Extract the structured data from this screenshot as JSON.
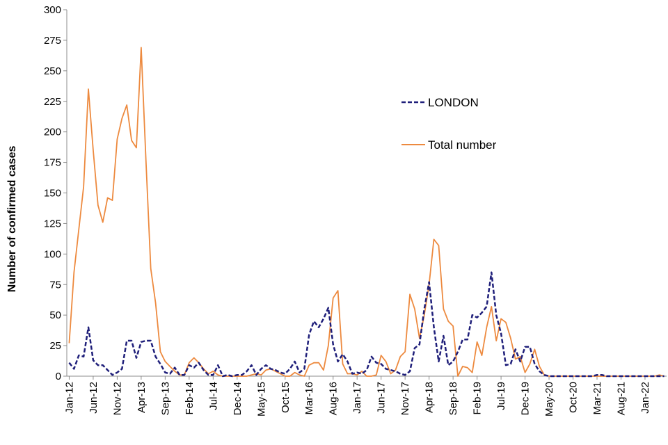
{
  "chart_data": {
    "type": "line",
    "ylabel": "Number of confirmed cases",
    "ylim": [
      0,
      300
    ],
    "yticks": [
      0,
      25,
      50,
      75,
      100,
      125,
      150,
      175,
      200,
      225,
      250,
      275,
      300
    ],
    "x_tick_labels": [
      "Jan-12",
      "Jun-12",
      "Nov-12",
      "Apr-13",
      "Sep-13",
      "Feb-14",
      "Jul-14",
      "Dec-14",
      "May-15",
      "Oct-15",
      "Mar-16",
      "Aug-16",
      "Jan-17",
      "Jun-17",
      "Nov-17",
      "Apr-18",
      "Sep-18",
      "Feb-19",
      "Jul-19",
      "Dec-19",
      "May-20",
      "Oct-20",
      "Mar-21",
      "Aug-21",
      "Jan-22"
    ],
    "x_range": [
      "Jan-12",
      "May-22"
    ],
    "grid": false,
    "legend_position": "upper-middle-right",
    "colors": {
      "london": "#1f1f7a",
      "total": "#ed8a3f"
    },
    "series": [
      {
        "name": "LONDON",
        "style": "dashed",
        "points": [
          [
            "Jan-12",
            11
          ],
          [
            "Feb-12",
            6
          ],
          [
            "Mar-12",
            17
          ],
          [
            "Apr-12",
            16
          ],
          [
            "May-12",
            40
          ],
          [
            "Jun-12",
            13
          ],
          [
            "Jul-12",
            9
          ],
          [
            "Aug-12",
            9
          ],
          [
            "Sep-12",
            5
          ],
          [
            "Oct-12",
            1
          ],
          [
            "Nov-12",
            3
          ],
          [
            "Dec-12",
            6
          ],
          [
            "Jan-13",
            29
          ],
          [
            "Feb-13",
            29
          ],
          [
            "Mar-13",
            15
          ],
          [
            "Apr-13",
            28
          ],
          [
            "May-13",
            29
          ],
          [
            "Jun-13",
            29
          ],
          [
            "Jul-13",
            16
          ],
          [
            "Aug-13",
            10
          ],
          [
            "Sep-13",
            3
          ],
          [
            "Oct-13",
            2
          ],
          [
            "Nov-13",
            7
          ],
          [
            "Dec-13",
            1
          ],
          [
            "Jan-14",
            1
          ],
          [
            "Feb-14",
            9
          ],
          [
            "Mar-14",
            7
          ],
          [
            "Apr-14",
            11
          ],
          [
            "May-14",
            5
          ],
          [
            "Jun-14",
            1
          ],
          [
            "Jul-14",
            1
          ],
          [
            "Aug-14",
            9
          ],
          [
            "Sep-14",
            0
          ],
          [
            "Oct-14",
            1
          ],
          [
            "Nov-14",
            0
          ],
          [
            "Dec-14",
            1
          ],
          [
            "Jan-15",
            1
          ],
          [
            "Feb-15",
            4
          ],
          [
            "Mar-15",
            9
          ],
          [
            "Apr-15",
            1
          ],
          [
            "May-15",
            6
          ],
          [
            "Jun-15",
            9
          ],
          [
            "Jul-15",
            6
          ],
          [
            "Aug-15",
            5
          ],
          [
            "Sep-15",
            3
          ],
          [
            "Oct-15",
            2
          ],
          [
            "Nov-15",
            6
          ],
          [
            "Dec-15",
            12
          ],
          [
            "Jan-16",
            3
          ],
          [
            "Feb-16",
            6
          ],
          [
            "Mar-16",
            34
          ],
          [
            "Apr-16",
            45
          ],
          [
            "May-16",
            40
          ],
          [
            "Jun-16",
            47
          ],
          [
            "Jul-16",
            56
          ],
          [
            "Aug-16",
            26
          ],
          [
            "Sep-16",
            12
          ],
          [
            "Oct-16",
            18
          ],
          [
            "Nov-16",
            12
          ],
          [
            "Dec-16",
            2
          ],
          [
            "Jan-17",
            3
          ],
          [
            "Feb-17",
            2
          ],
          [
            "Mar-17",
            5
          ],
          [
            "Apr-17",
            16
          ],
          [
            "May-17",
            11
          ],
          [
            "Jun-17",
            10
          ],
          [
            "Jul-17",
            6
          ],
          [
            "Aug-17",
            5
          ],
          [
            "Sep-17",
            4
          ],
          [
            "Oct-17",
            2
          ],
          [
            "Nov-17",
            1
          ],
          [
            "Dec-17",
            4
          ],
          [
            "Jan-18",
            23
          ],
          [
            "Feb-18",
            26
          ],
          [
            "Mar-18",
            55
          ],
          [
            "Apr-18",
            77
          ],
          [
            "May-18",
            40
          ],
          [
            "Jun-18",
            12
          ],
          [
            "Jul-18",
            33
          ],
          [
            "Aug-18",
            9
          ],
          [
            "Sep-18",
            12
          ],
          [
            "Oct-18",
            20
          ],
          [
            "Nov-18",
            30
          ],
          [
            "Dec-18",
            30
          ],
          [
            "Jan-19",
            50
          ],
          [
            "Feb-19",
            48
          ],
          [
            "Mar-19",
            52
          ],
          [
            "Apr-19",
            57
          ],
          [
            "May-19",
            85
          ],
          [
            "Jun-19",
            50
          ],
          [
            "Jul-19",
            35
          ],
          [
            "Aug-19",
            9
          ],
          [
            "Sep-19",
            10
          ],
          [
            "Oct-19",
            22
          ],
          [
            "Nov-19",
            12
          ],
          [
            "Dec-19",
            24
          ],
          [
            "Jan-20",
            24
          ],
          [
            "Feb-20",
            10
          ],
          [
            "Mar-20",
            4
          ],
          [
            "Apr-20",
            1
          ],
          [
            "May-20",
            0
          ],
          [
            "Jun-20",
            0
          ],
          [
            "Jul-20",
            0
          ],
          [
            "Aug-20",
            0
          ],
          [
            "Sep-20",
            0
          ],
          [
            "Oct-20",
            0
          ],
          [
            "Nov-20",
            0
          ],
          [
            "Dec-20",
            0
          ],
          [
            "Jan-21",
            0
          ],
          [
            "Feb-21",
            0
          ],
          [
            "Mar-21",
            1
          ],
          [
            "Apr-21",
            1
          ],
          [
            "May-21",
            0
          ],
          [
            "Jun-21",
            0
          ],
          [
            "Jul-21",
            0
          ],
          [
            "Aug-21",
            0
          ],
          [
            "Sep-21",
            0
          ],
          [
            "Oct-21",
            0
          ],
          [
            "Nov-21",
            0
          ],
          [
            "Dec-21",
            0
          ],
          [
            "Jan-22",
            0
          ],
          [
            "Feb-22",
            0
          ],
          [
            "Mar-22",
            0
          ],
          [
            "Apr-22",
            0
          ],
          [
            "May-22",
            0
          ]
        ]
      },
      {
        "name": "Total number",
        "style": "solid",
        "points": [
          [
            "Jan-12",
            27
          ],
          [
            "Feb-12",
            85
          ],
          [
            "Mar-12",
            120
          ],
          [
            "Apr-12",
            155
          ],
          [
            "May-12",
            235
          ],
          [
            "Jun-12",
            185
          ],
          [
            "Jul-12",
            140
          ],
          [
            "Aug-12",
            126
          ],
          [
            "Sep-12",
            146
          ],
          [
            "Oct-12",
            144
          ],
          [
            "Nov-12",
            194
          ],
          [
            "Dec-12",
            211
          ],
          [
            "Jan-13",
            222
          ],
          [
            "Feb-13",
            193
          ],
          [
            "Mar-13",
            187
          ],
          [
            "Apr-13",
            269
          ],
          [
            "May-13",
            176
          ],
          [
            "Jun-13",
            88
          ],
          [
            "Jul-13",
            60
          ],
          [
            "Aug-13",
            20
          ],
          [
            "Sep-13",
            12
          ],
          [
            "Oct-13",
            8
          ],
          [
            "Nov-13",
            4
          ],
          [
            "Dec-13",
            1
          ],
          [
            "Jan-14",
            1
          ],
          [
            "Feb-14",
            11
          ],
          [
            "Mar-14",
            15
          ],
          [
            "Apr-14",
            11
          ],
          [
            "May-14",
            6
          ],
          [
            "Jun-14",
            2
          ],
          [
            "Jul-14",
            4
          ],
          [
            "Aug-14",
            1
          ],
          [
            "Sep-14",
            0
          ],
          [
            "Oct-14",
            0
          ],
          [
            "Nov-14",
            0
          ],
          [
            "Dec-14",
            0
          ],
          [
            "Jan-15",
            0
          ],
          [
            "Feb-15",
            0
          ],
          [
            "Mar-15",
            1
          ],
          [
            "Apr-15",
            2
          ],
          [
            "May-15",
            1
          ],
          [
            "Jun-15",
            5
          ],
          [
            "Jul-15",
            6
          ],
          [
            "Aug-15",
            4
          ],
          [
            "Sep-15",
            2
          ],
          [
            "Oct-15",
            0
          ],
          [
            "Nov-15",
            0
          ],
          [
            "Dec-15",
            3
          ],
          [
            "Jan-16",
            1
          ],
          [
            "Feb-16",
            0
          ],
          [
            "Mar-16",
            9
          ],
          [
            "Apr-16",
            11
          ],
          [
            "May-16",
            11
          ],
          [
            "Jun-16",
            5
          ],
          [
            "Jul-16",
            25
          ],
          [
            "Aug-16",
            64
          ],
          [
            "Sep-16",
            70
          ],
          [
            "Oct-16",
            10
          ],
          [
            "Nov-16",
            2
          ],
          [
            "Dec-16",
            2
          ],
          [
            "Jan-17",
            1
          ],
          [
            "Feb-17",
            4
          ],
          [
            "Mar-17",
            0
          ],
          [
            "Apr-17",
            0
          ],
          [
            "May-17",
            1
          ],
          [
            "Jun-17",
            17
          ],
          [
            "Jul-17",
            12
          ],
          [
            "Aug-17",
            2
          ],
          [
            "Sep-17",
            5
          ],
          [
            "Oct-17",
            16
          ],
          [
            "Nov-17",
            20
          ],
          [
            "Dec-17",
            67
          ],
          [
            "Jan-18",
            55
          ],
          [
            "Feb-18",
            31
          ],
          [
            "Mar-18",
            50
          ],
          [
            "Apr-18",
            75
          ],
          [
            "May-18",
            112
          ],
          [
            "Jun-18",
            107
          ],
          [
            "Jul-18",
            55
          ],
          [
            "Aug-18",
            45
          ],
          [
            "Sep-18",
            41
          ],
          [
            "Oct-18",
            0
          ],
          [
            "Nov-18",
            8
          ],
          [
            "Dec-18",
            7
          ],
          [
            "Jan-19",
            3
          ],
          [
            "Feb-19",
            28
          ],
          [
            "Mar-19",
            17
          ],
          [
            "Apr-19",
            40
          ],
          [
            "May-19",
            57
          ],
          [
            "Jun-19",
            29
          ],
          [
            "Jul-19",
            47
          ],
          [
            "Aug-19",
            44
          ],
          [
            "Sep-19",
            31
          ],
          [
            "Oct-19",
            14
          ],
          [
            "Nov-19",
            16
          ],
          [
            "Dec-19",
            3
          ],
          [
            "Jan-20",
            10
          ],
          [
            "Feb-20",
            22
          ],
          [
            "Mar-20",
            8
          ],
          [
            "Apr-20",
            1
          ],
          [
            "May-20",
            0
          ],
          [
            "Jun-20",
            0
          ],
          [
            "Jul-20",
            0
          ],
          [
            "Aug-20",
            0
          ],
          [
            "Sep-20",
            0
          ],
          [
            "Oct-20",
            0
          ],
          [
            "Nov-20",
            0
          ],
          [
            "Dec-20",
            0
          ],
          [
            "Jan-21",
            0
          ],
          [
            "Feb-21",
            0
          ],
          [
            "Mar-21",
            0
          ],
          [
            "Apr-21",
            0
          ],
          [
            "May-21",
            0
          ],
          [
            "Jun-21",
            0
          ],
          [
            "Jul-21",
            0
          ],
          [
            "Aug-21",
            0
          ],
          [
            "Sep-21",
            0
          ],
          [
            "Oct-21",
            0
          ],
          [
            "Nov-21",
            0
          ],
          [
            "Dec-21",
            0
          ],
          [
            "Jan-22",
            0
          ],
          [
            "Feb-22",
            0
          ],
          [
            "Mar-22",
            0
          ],
          [
            "Apr-22",
            1
          ],
          [
            "May-22",
            0
          ]
        ]
      }
    ]
  }
}
